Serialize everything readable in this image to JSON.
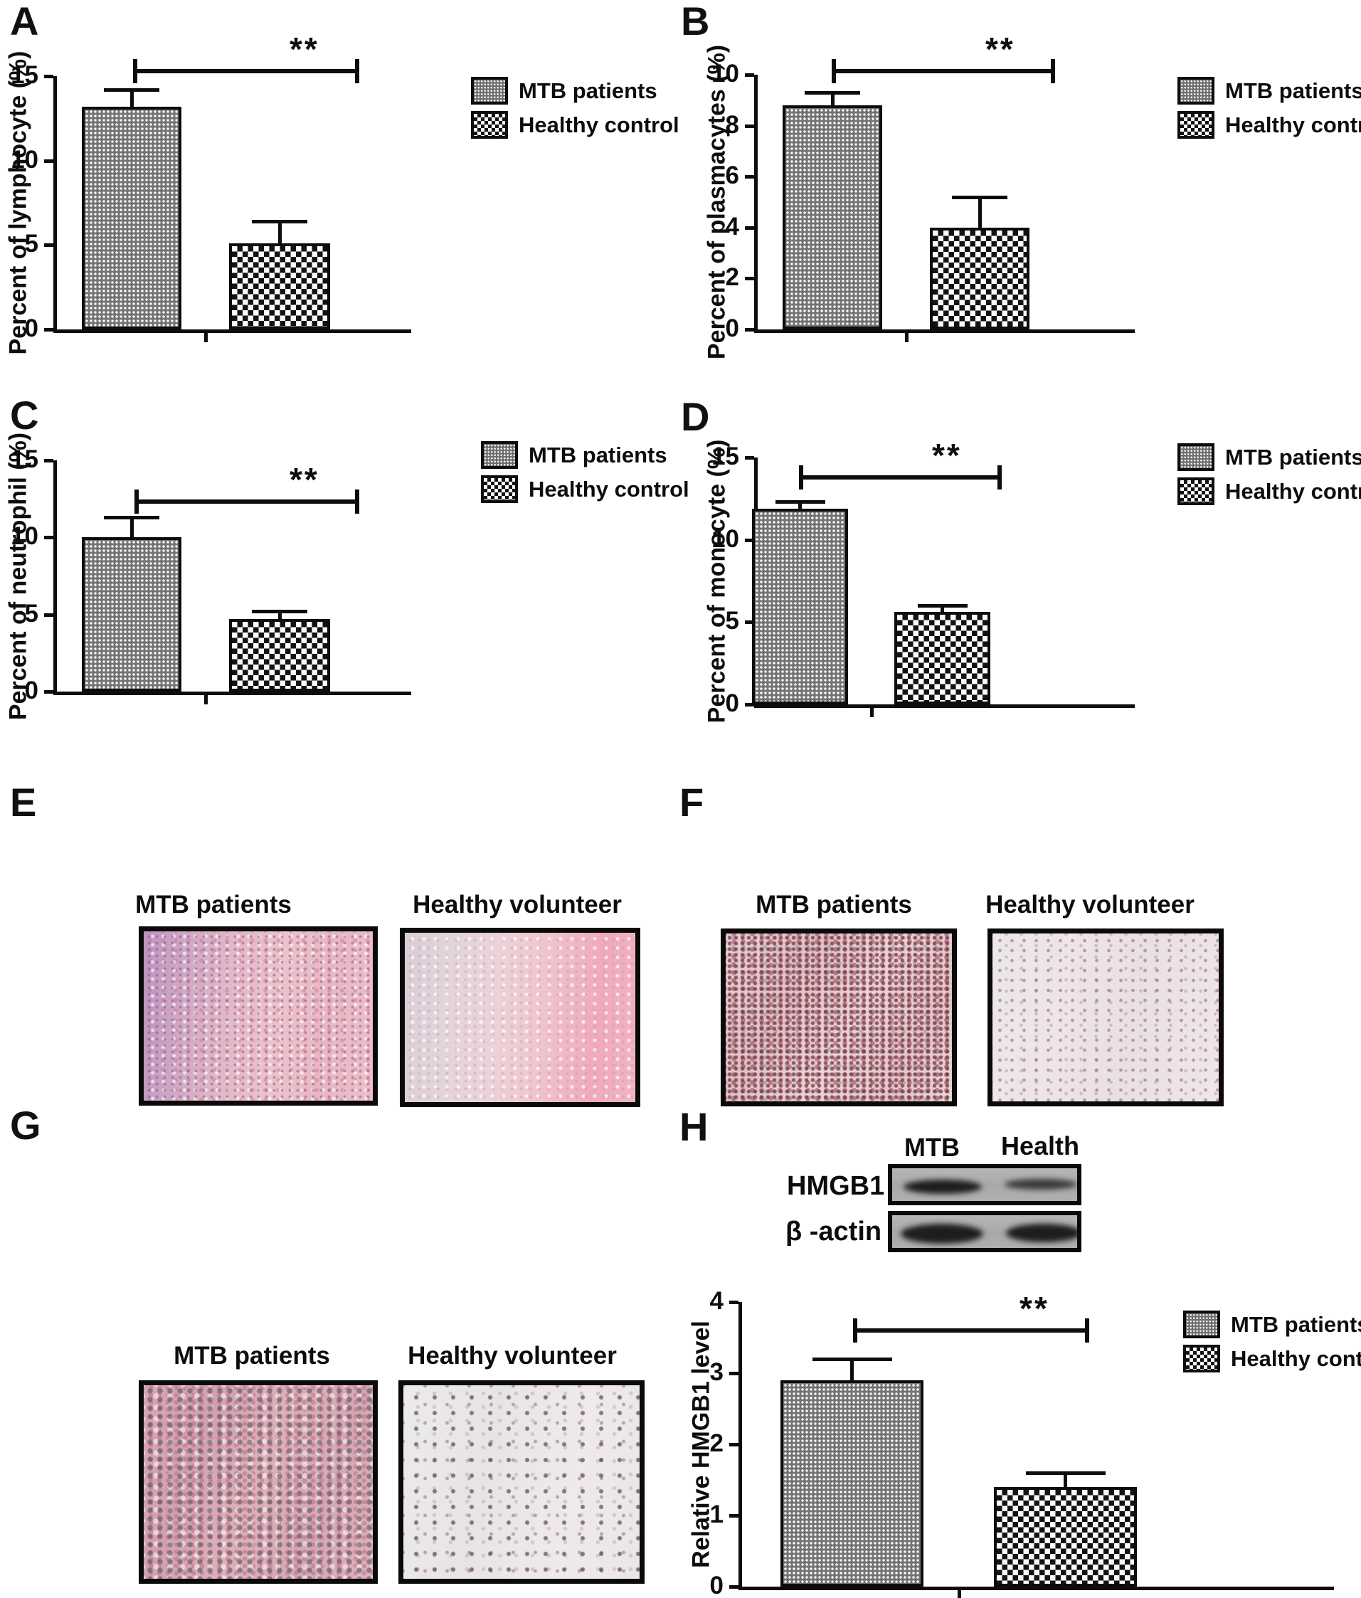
{
  "panels": {
    "a": "A",
    "b": "B",
    "c": "C",
    "d": "D",
    "e": "E",
    "f": "F",
    "g": "G",
    "h": "H"
  },
  "legend": {
    "mtb": "MTB patients",
    "healthy": "Healthy control"
  },
  "histology": {
    "e": {
      "left_label": "MTB patients",
      "right_label": "Healthy volunteer"
    },
    "f": {
      "left_label": "MTB patients",
      "right_label": "Healthy volunteer"
    },
    "g": {
      "left_label": "MTB patients",
      "right_label": "Healthy volunteer"
    }
  },
  "blot": {
    "lane_labels": [
      "MTB",
      "Health"
    ],
    "row_labels": [
      "HMGB1",
      "β -actin"
    ]
  },
  "chart_data": [
    {
      "panel": "A",
      "type": "bar",
      "ylabel": "Percent of lymphocyte (%)",
      "categories": [
        "MTB patients",
        "Healthy control"
      ],
      "values": [
        13.2,
        5.1
      ],
      "errors_up": [
        1.0,
        1.3
      ],
      "ylim": [
        0,
        15
      ],
      "yticks": [
        0,
        5,
        10,
        15
      ],
      "significance": "**",
      "legend_position": "right",
      "grid": false
    },
    {
      "panel": "B",
      "type": "bar",
      "ylabel": "Percent of plasmacytes (%)",
      "categories": [
        "MTB patients",
        "Healthy control"
      ],
      "values": [
        8.8,
        4.0
      ],
      "errors_up": [
        0.5,
        1.2
      ],
      "ylim": [
        0,
        10
      ],
      "yticks": [
        0,
        2,
        4,
        6,
        8,
        10
      ],
      "significance": "**",
      "legend_position": "right",
      "grid": false
    },
    {
      "panel": "C",
      "type": "bar",
      "ylabel": "Percent of neutrophil (%)",
      "categories": [
        "MTB patients",
        "Healthy control"
      ],
      "values": [
        10.0,
        4.7
      ],
      "errors_up": [
        1.3,
        0.5
      ],
      "ylim": [
        0,
        15
      ],
      "yticks": [
        0,
        5,
        10,
        15
      ],
      "significance": "**",
      "legend_position": "right",
      "grid": false
    },
    {
      "panel": "D",
      "type": "bar",
      "ylabel": "Percent of monocyte (%)",
      "categories": [
        "MTB patients",
        "Healthy control"
      ],
      "values": [
        11.9,
        5.6
      ],
      "errors_up": [
        0.4,
        0.4
      ],
      "ylim": [
        0,
        15
      ],
      "yticks": [
        0,
        5,
        10,
        15
      ],
      "significance": "**",
      "legend_position": "right",
      "grid": false
    },
    {
      "panel": "H",
      "type": "bar",
      "ylabel": "Relative HMGB1 level",
      "categories": [
        "MTB patients",
        "Healthy control"
      ],
      "values": [
        2.9,
        1.4
      ],
      "errors_up": [
        0.3,
        0.2
      ],
      "ylim": [
        0,
        4
      ],
      "yticks": [
        0,
        1,
        2,
        3,
        4
      ],
      "significance": "**",
      "legend_position": "right",
      "grid": false
    }
  ]
}
